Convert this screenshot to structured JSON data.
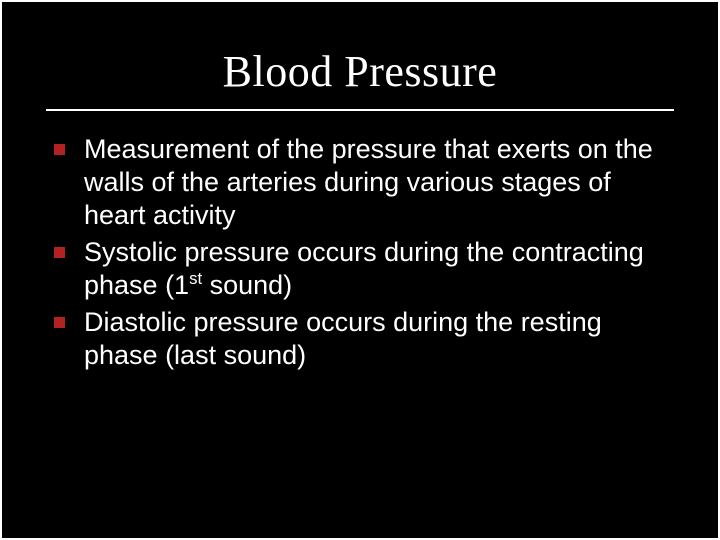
{
  "slide": {
    "background_color": "#000000",
    "border_color": "#ffffff",
    "title": "Blood Pressure",
    "title_font": "Times New Roman",
    "title_fontsize": 44,
    "title_color": "#ffffff",
    "divider_color": "#ffffff",
    "body_font": "Arial",
    "body_fontsize": 27,
    "body_color": "#ffffff",
    "bullet_marker_color": "#b22222",
    "bullets": [
      {
        "text": "Measurement of the pressure that exerts on the walls of the arteries during various stages of heart activity"
      },
      {
        "text_pre": "Systolic pressure occurs during the contracting phase (1",
        "ordinal_sup": "st",
        "text_post": " sound)"
      },
      {
        "text": "Diastolic pressure occurs during the resting phase (last sound)"
      }
    ]
  }
}
